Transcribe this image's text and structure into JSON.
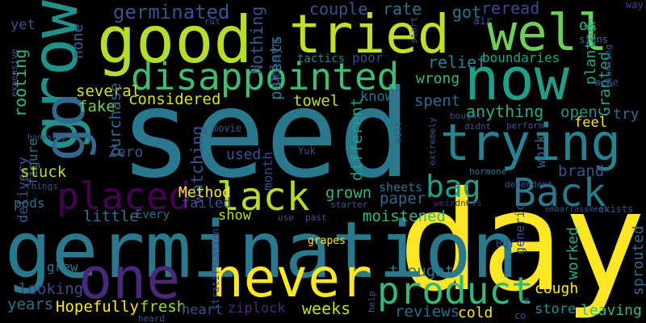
{
  "background": "#000000",
  "palette": {
    "purple": "#440154",
    "indigo": "#3b528b",
    "blue": "#31688e",
    "teal": "#21908d",
    "green": "#35b779",
    "lime": "#90d743",
    "yellow": "#fde725"
  },
  "words": [
    {
      "text": "seed",
      "color": "#2a788e"
    },
    {
      "text": "day",
      "color": "#fde725"
    },
    {
      "text": "germination",
      "color": "#2a788e"
    },
    {
      "text": "good",
      "color": "#b5de2b"
    },
    {
      "text": "tried",
      "color": "#c2df23"
    },
    {
      "text": "well",
      "color": "#6ece58"
    },
    {
      "text": "now",
      "color": "#1f9e89"
    },
    {
      "text": "grow",
      "color": "#21918c"
    },
    {
      "text": "trying",
      "color": "#26828e"
    },
    {
      "text": "never",
      "color": "#fde725"
    },
    {
      "text": "one",
      "color": "#482878"
    },
    {
      "text": "disappointed",
      "color": "#3dbc74"
    },
    {
      "text": "product",
      "color": "#35b779"
    },
    {
      "text": "placed",
      "color": "#440154"
    },
    {
      "text": "lack",
      "color": "#b5de2b"
    },
    {
      "text": "Back",
      "color": "#2a788e"
    },
    {
      "text": "bag",
      "color": "#1f9e89"
    },
    {
      "text": "go",
      "color": "#31688e"
    },
    {
      "text": "germinated",
      "color": "#3b528b"
    },
    {
      "text": "couple",
      "color": "#3b528b"
    },
    {
      "text": "rate",
      "color": "#2c728e"
    },
    {
      "text": "got",
      "color": "#2c728e"
    },
    {
      "text": "reread",
      "color": "#3e4989"
    },
    {
      "text": "ok",
      "color": "#35b779"
    },
    {
      "text": "yet",
      "color": "#3b528b"
    },
    {
      "text": "none",
      "color": "#31688e"
    },
    {
      "text": "rooting",
      "color": "#35b779"
    },
    {
      "text": "Nothing",
      "color": "#3b528b"
    },
    {
      "text": "parents",
      "color": "#26828e"
    },
    {
      "text": "tactics",
      "color": "#26828e"
    },
    {
      "text": "poor",
      "color": "#3e4989"
    },
    {
      "text": "relief",
      "color": "#26828e"
    },
    {
      "text": "boundaries",
      "color": "#20a486"
    },
    {
      "text": "planted",
      "color": "#22a884"
    },
    {
      "text": "wrong",
      "color": "#35b779"
    },
    {
      "text": "several",
      "color": "#d8e219"
    },
    {
      "text": "considered",
      "color": "#d8e219"
    },
    {
      "text": "towel",
      "color": "#c2df23"
    },
    {
      "text": "know",
      "color": "#2c728e"
    },
    {
      "text": "spent",
      "color": "#31688e"
    },
    {
      "text": "Delsym",
      "color": "#3b528b"
    },
    {
      "text": "Granted",
      "color": "#1fa187"
    },
    {
      "text": "fake",
      "color": "#6ece58"
    },
    {
      "text": "purchase",
      "color": "#31688e"
    },
    {
      "text": "anything",
      "color": "#27ad81"
    },
    {
      "text": "open",
      "color": "#21918c"
    },
    {
      "text": "try",
      "color": "#31688e"
    },
    {
      "text": "feel",
      "color": "#fde725"
    },
    {
      "text": "figure",
      "color": "#2c728e"
    },
    {
      "text": "watching",
      "color": "#3b528b"
    },
    {
      "text": "Zero",
      "color": "#3b528b"
    },
    {
      "text": "used",
      "color": "#3b528b"
    },
    {
      "text": "month",
      "color": "#3e4989"
    },
    {
      "text": "different",
      "color": "#1fa187"
    },
    {
      "text": "work",
      "color": "#31688e"
    },
    {
      "text": "brand",
      "color": "#3b528b"
    },
    {
      "text": "delivery",
      "color": "#3b528b"
    },
    {
      "text": "stuck",
      "color": "#b5de2b"
    },
    {
      "text": "pods",
      "color": "#2c728e"
    },
    {
      "text": "Method",
      "color": "#fde725"
    },
    {
      "text": "failed",
      "color": "#3b528b"
    },
    {
      "text": "grown",
      "color": "#35b779"
    },
    {
      "text": "paper",
      "color": "#31688e"
    },
    {
      "text": "sheets",
      "color": "#2c728e"
    },
    {
      "text": "little",
      "color": "#2c728e"
    },
    {
      "text": "Every",
      "color": "#2c728e"
    },
    {
      "text": "show",
      "color": "#b5de2b"
    },
    {
      "text": "moistened",
      "color": "#35b779"
    },
    {
      "text": "generic",
      "color": "#3e4989"
    },
    {
      "text": "worked",
      "color": "#27ad81"
    },
    {
      "text": "sprouted",
      "color": "#31688e"
    },
    {
      "text": "grew",
      "color": "#2c728e"
    },
    {
      "text": "looking",
      "color": "#3e4989"
    },
    {
      "text": "years",
      "color": "#2c728e"
    },
    {
      "text": "Hopefully",
      "color": "#fde725"
    },
    {
      "text": "fresh",
      "color": "#9fda3a"
    },
    {
      "text": "heart",
      "color": "#3b528b"
    },
    {
      "text": "ziplock",
      "color": "#482878"
    },
    {
      "text": "weeks",
      "color": "#c2df23"
    },
    {
      "text": "thought",
      "color": "#2a788e"
    },
    {
      "text": "reviews",
      "color": "#31688e"
    },
    {
      "text": "cold",
      "color": "#fde725"
    },
    {
      "text": "cough",
      "color": "#fde725"
    },
    {
      "text": "store",
      "color": "#21918c"
    },
    {
      "text": "leaving",
      "color": "#35b779"
    },
    {
      "text": "grapes",
      "color": "#fde725"
    },
    {
      "text": "BUY",
      "color": "#3e4989"
    },
    {
      "text": "stratification",
      "color": "#3e4989"
    },
    {
      "text": "embarrassment",
      "color": "#3b528b"
    },
    {
      "text": "exists",
      "color": "#3b528b"
    },
    {
      "text": "dependent",
      "color": "#3b528b"
    },
    {
      "text": "hormone",
      "color": "#2c728e"
    },
    {
      "text": "weirdness",
      "color": "#482878"
    },
    {
      "text": "starter",
      "color": "#3b528b"
    },
    {
      "text": "use",
      "color": "#3b528b"
    },
    {
      "text": "past",
      "color": "#3b528b"
    },
    {
      "text": "Yuk",
      "color": "#3b528b"
    },
    {
      "text": "movie",
      "color": "#3b528b"
    },
    {
      "text": "honestly",
      "color": "#3b528b"
    },
    {
      "text": "things",
      "color": "#3b528b"
    },
    {
      "text": "expensive",
      "color": "#3b528b"
    },
    {
      "text": "heard",
      "color": "#3b528b"
    },
    {
      "text": "help",
      "color": "#3b528b"
    },
    {
      "text": "co",
      "color": "#3b528b"
    },
    {
      "text": "ve",
      "color": "#3b528b"
    },
    {
      "text": "bought",
      "color": "#3e4989"
    },
    {
      "text": "didnt",
      "color": "#3b528b"
    },
    {
      "text": "perform",
      "color": "#3b528b"
    },
    {
      "text": "Will",
      "color": "#3b528b"
    },
    {
      "text": "extremely",
      "color": "#3b528b"
    },
    {
      "text": "signs",
      "color": "#2c728e"
    },
    {
      "text": "planting",
      "color": "#3b528b"
    },
    {
      "text": "ache",
      "color": "#3e4989"
    },
    {
      "text": "way",
      "color": "#3e4989"
    },
    {
      "text": "air",
      "color": "#3b528b"
    },
    {
      "text": "start",
      "color": "#3b528b"
    },
    {
      "text": "rut",
      "color": "#3b528b"
    }
  ]
}
